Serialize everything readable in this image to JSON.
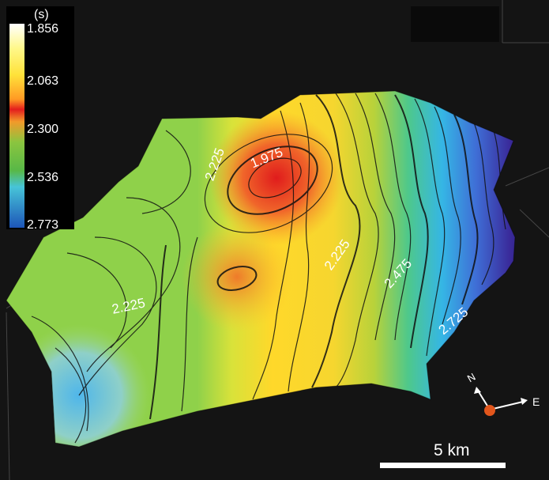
{
  "legend": {
    "unit": "(s)",
    "ticks": [
      "1.856",
      "2.063",
      "2.300",
      "2.536",
      "2.773"
    ]
  },
  "contour_labels": [
    "2.225",
    "1.975",
    "2.225",
    "2.225",
    "2.475",
    "2.725"
  ],
  "compass": {
    "north": "N",
    "east": "E"
  },
  "scale_bar": {
    "label": "5 km"
  },
  "colors": {
    "background": "#141414",
    "low": "#ffffff",
    "mid": "#e31d1d",
    "high": "#2b1f7c"
  }
}
